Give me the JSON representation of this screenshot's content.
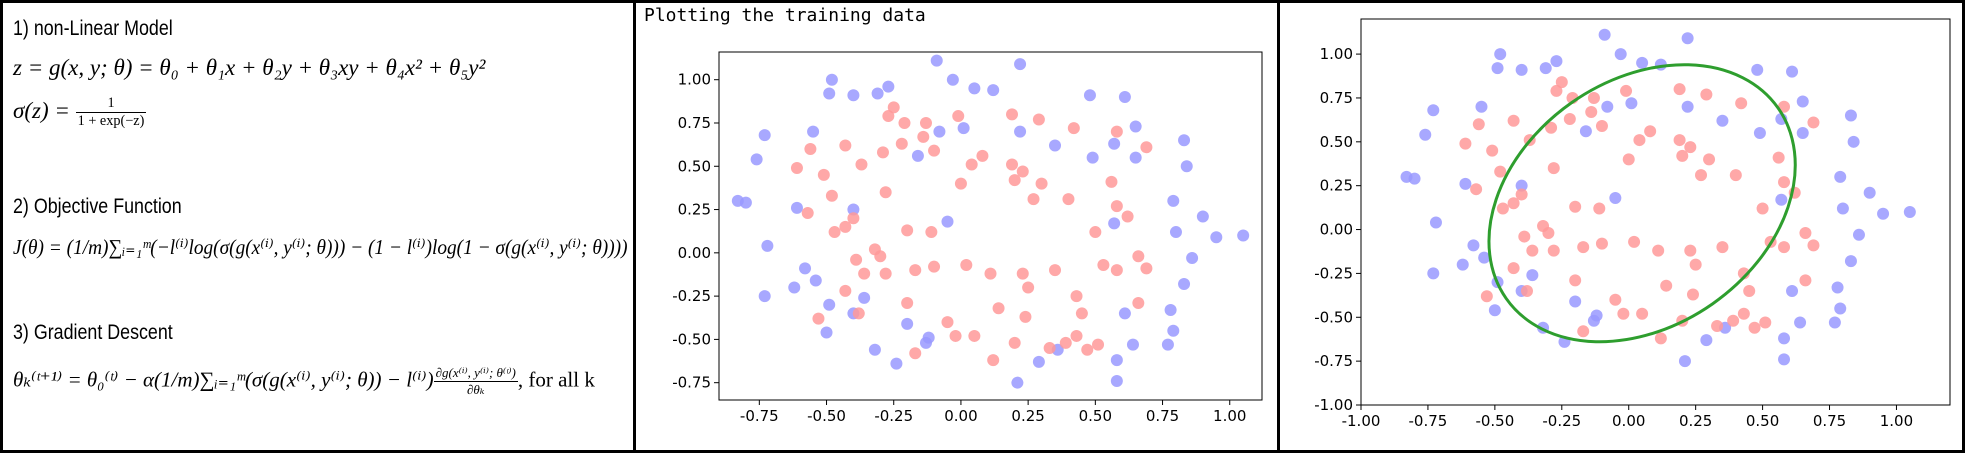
{
  "equations": {
    "heading_model": "1) non-Linear Model",
    "model_eq": "z = g(x, y; θ) = θ₀ + θ₁x + θ₂y + θ₃xy + θ₄x² + θ₅y²",
    "sigmoid_lhs": "σ(z) = ",
    "sigmoid_num": "1",
    "sigmoid_den": "1 + exp(−z)",
    "heading_objective": "2) Objective Function",
    "objective_eq": "J(θ) = (1/m)∑ᵢ₌₁ᵐ(−l⁽ⁱ⁾log(σ(g(x⁽ⁱ⁾, y⁽ⁱ⁾; θ))) − (1 − l⁽ⁱ⁾)log(1 − σ(g(x⁽ⁱ⁾, y⁽ⁱ⁾; θ))))",
    "heading_gradient": "3) Gradient Descent",
    "gradient_lhs": "θₖ⁽ᵗ⁺¹⁾ = θ₀⁽ᵗ⁾ − α(1/m)∑ᵢ₌₁ᵐ(σ(g(x⁽ⁱ⁾, y⁽ⁱ⁾; θ)) − l⁽ⁱ⁾)",
    "gradient_num": "∂g(x⁽ⁱ⁾, y⁽ⁱ⁾; θ⁽ᵗ⁾)",
    "gradient_den": "∂θₖ",
    "gradient_tail": ", for all k"
  },
  "colors": {
    "class0": "#ff9999",
    "class1": "#9999ff",
    "boundary": "#2e9e2e"
  },
  "chart_data": [
    {
      "type": "scatter",
      "title": "Plotting the training data",
      "xlim": [
        -0.9,
        1.12
      ],
      "ylim": [
        -0.85,
        1.16
      ],
      "xticks": [
        "-0.75",
        "-0.50",
        "-0.25",
        "0.00",
        "0.25",
        "0.50",
        "0.75",
        "1.00"
      ],
      "xtick_values": [
        -0.75,
        -0.5,
        -0.25,
        0,
        0.25,
        0.5,
        0.75,
        1.0
      ],
      "yticks": [
        "1.00",
        "0.75",
        "0.50",
        "0.25",
        "0.00",
        "-0.25",
        "-0.50",
        "-0.75"
      ],
      "ytick_values": [
        1.0,
        0.75,
        0.5,
        0.25,
        0,
        -0.25,
        -0.5,
        -0.75
      ],
      "grid": false
    },
    {
      "type": "scatter",
      "title": "",
      "xlim": [
        -1.0,
        1.2
      ],
      "ylim": [
        -1.0,
        1.2
      ],
      "xticks": [
        "-1.00",
        "-0.75",
        "-0.50",
        "-0.25",
        "0.00",
        "0.25",
        "0.50",
        "0.75",
        "1.00"
      ],
      "xtick_values": [
        -1.0,
        -0.75,
        -0.5,
        -0.25,
        0,
        0.25,
        0.5,
        0.75,
        1.0
      ],
      "yticks": [
        "1.00",
        "0.75",
        "0.50",
        "0.25",
        "0.00",
        "-0.25",
        "-0.50",
        "-0.75",
        "-1.00"
      ],
      "ytick_values": [
        1.0,
        0.75,
        0.5,
        0.25,
        0,
        -0.25,
        -0.5,
        -0.75,
        -1.0
      ],
      "grid": false,
      "decision_boundary": {
        "shape": "ellipse",
        "center": [
          0.05,
          0.15
        ],
        "rx": 0.62,
        "ry": 0.7,
        "rotation_deg": -35
      }
    }
  ],
  "points": {
    "class1": [
      [
        -0.09,
        1.11
      ],
      [
        0.22,
        1.09
      ],
      [
        -0.48,
        1.0
      ],
      [
        -0.03,
        1.0
      ],
      [
        -0.27,
        0.96
      ],
      [
        -0.49,
        0.92
      ],
      [
        -0.31,
        0.92
      ],
      [
        -0.4,
        0.91
      ],
      [
        0.05,
        0.95
      ],
      [
        0.12,
        0.94
      ],
      [
        0.48,
        0.91
      ],
      [
        0.61,
        0.9
      ],
      [
        0.65,
        0.73
      ],
      [
        -0.73,
        0.68
      ],
      [
        -0.55,
        0.7
      ],
      [
        -0.08,
        0.7
      ],
      [
        0.01,
        0.72
      ],
      [
        0.22,
        0.7
      ],
      [
        -0.16,
        0.56
      ],
      [
        0.35,
        0.62
      ],
      [
        0.49,
        0.55
      ],
      [
        0.57,
        0.63
      ],
      [
        0.65,
        0.55
      ],
      [
        0.83,
        0.65
      ],
      [
        -0.76,
        0.54
      ],
      [
        0.84,
        0.5
      ],
      [
        -0.8,
        0.29
      ],
      [
        -0.4,
        0.25
      ],
      [
        -0.61,
        0.26
      ],
      [
        0.79,
        0.3
      ],
      [
        0.9,
        0.21
      ],
      [
        -0.05,
        0.18
      ],
      [
        0.57,
        0.17
      ],
      [
        0.8,
        0.12
      ],
      [
        1.05,
        0.1
      ],
      [
        -0.72,
        0.04
      ],
      [
        0.95,
        0.09
      ],
      [
        -0.83,
        0.3
      ],
      [
        -0.58,
        -0.09
      ],
      [
        0.86,
        -0.03
      ],
      [
        -0.54,
        -0.16
      ],
      [
        -0.73,
        -0.25
      ],
      [
        0.83,
        -0.18
      ],
      [
        -0.62,
        -0.2
      ],
      [
        0.78,
        -0.33
      ],
      [
        -0.36,
        -0.26
      ],
      [
        -0.49,
        -0.3
      ],
      [
        -0.4,
        -0.35
      ],
      [
        0.61,
        -0.35
      ],
      [
        -0.2,
        -0.41
      ],
      [
        -0.5,
        -0.46
      ],
      [
        0.79,
        -0.45
      ],
      [
        -0.32,
        -0.56
      ],
      [
        0.77,
        -0.53
      ],
      [
        0.64,
        -0.53
      ],
      [
        -0.13,
        -0.52
      ],
      [
        0.36,
        -0.56
      ],
      [
        0.58,
        -0.62
      ],
      [
        0.29,
        -0.63
      ],
      [
        0.21,
        -0.75
      ],
      [
        0.58,
        -0.74
      ],
      [
        -0.24,
        -0.64
      ],
      [
        -0.12,
        -0.49
      ]
    ],
    "class0": [
      [
        -0.25,
        0.84
      ],
      [
        -0.27,
        0.79
      ],
      [
        -0.21,
        0.75
      ],
      [
        -0.13,
        0.75
      ],
      [
        -0.14,
        0.67
      ],
      [
        -0.22,
        0.63
      ],
      [
        -0.01,
        0.79
      ],
      [
        0.19,
        0.8
      ],
      [
        0.29,
        0.77
      ],
      [
        0.42,
        0.72
      ],
      [
        -0.1,
        0.59
      ],
      [
        -0.29,
        0.58
      ],
      [
        0.04,
        0.51
      ],
      [
        0.08,
        0.56
      ],
      [
        0.19,
        0.51
      ],
      [
        -0.56,
        0.6
      ],
      [
        -0.43,
        0.62
      ],
      [
        0.58,
        0.7
      ],
      [
        0.69,
        0.61
      ],
      [
        0.56,
        0.41
      ],
      [
        0.23,
        0.47
      ],
      [
        -0.61,
        0.49
      ],
      [
        -0.37,
        0.51
      ],
      [
        0.62,
        0.21
      ],
      [
        -0.51,
        0.45
      ],
      [
        0.2,
        0.42
      ],
      [
        -0.28,
        0.35
      ],
      [
        -0.48,
        0.33
      ],
      [
        -0.57,
        0.23
      ],
      [
        -0.4,
        0.2
      ],
      [
        0.3,
        0.4
      ],
      [
        -0.2,
        0.13
      ],
      [
        -0.11,
        0.12
      ],
      [
        0.0,
        0.4
      ],
      [
        0.27,
        0.31
      ],
      [
        0.4,
        0.31
      ],
      [
        0.58,
        0.27
      ],
      [
        0.5,
        0.12
      ],
      [
        -0.43,
        0.15
      ],
      [
        -0.32,
        0.02
      ],
      [
        -0.47,
        0.12
      ],
      [
        -0.39,
        -0.04
      ],
      [
        -0.3,
        -0.02
      ],
      [
        -0.17,
        -0.1
      ],
      [
        -0.43,
        -0.22
      ],
      [
        -0.28,
        -0.12
      ],
      [
        0.66,
        -0.02
      ],
      [
        0.58,
        -0.1
      ],
      [
        0.53,
        -0.07
      ],
      [
        0.69,
        -0.09
      ],
      [
        0.66,
        -0.29
      ],
      [
        0.43,
        -0.25
      ],
      [
        0.35,
        -0.1
      ],
      [
        0.23,
        -0.12
      ],
      [
        0.11,
        -0.12
      ],
      [
        -0.1,
        -0.08
      ],
      [
        0.02,
        -0.07
      ],
      [
        0.25,
        -0.2
      ],
      [
        -0.2,
        -0.29
      ],
      [
        -0.36,
        -0.12
      ],
      [
        0.14,
        -0.32
      ],
      [
        0.2,
        -0.52
      ],
      [
        0.43,
        -0.48
      ],
      [
        0.39,
        -0.52
      ],
      [
        0.51,
        -0.53
      ],
      [
        0.33,
        -0.55
      ],
      [
        0.47,
        -0.56
      ],
      [
        0.12,
        -0.62
      ],
      [
        0.05,
        -0.48
      ],
      [
        -0.02,
        -0.48
      ],
      [
        -0.38,
        -0.35
      ],
      [
        -0.53,
        -0.38
      ],
      [
        -0.17,
        -0.58
      ],
      [
        0.24,
        -0.37
      ],
      [
        -0.05,
        -0.4
      ],
      [
        0.45,
        -0.35
      ]
    ]
  }
}
